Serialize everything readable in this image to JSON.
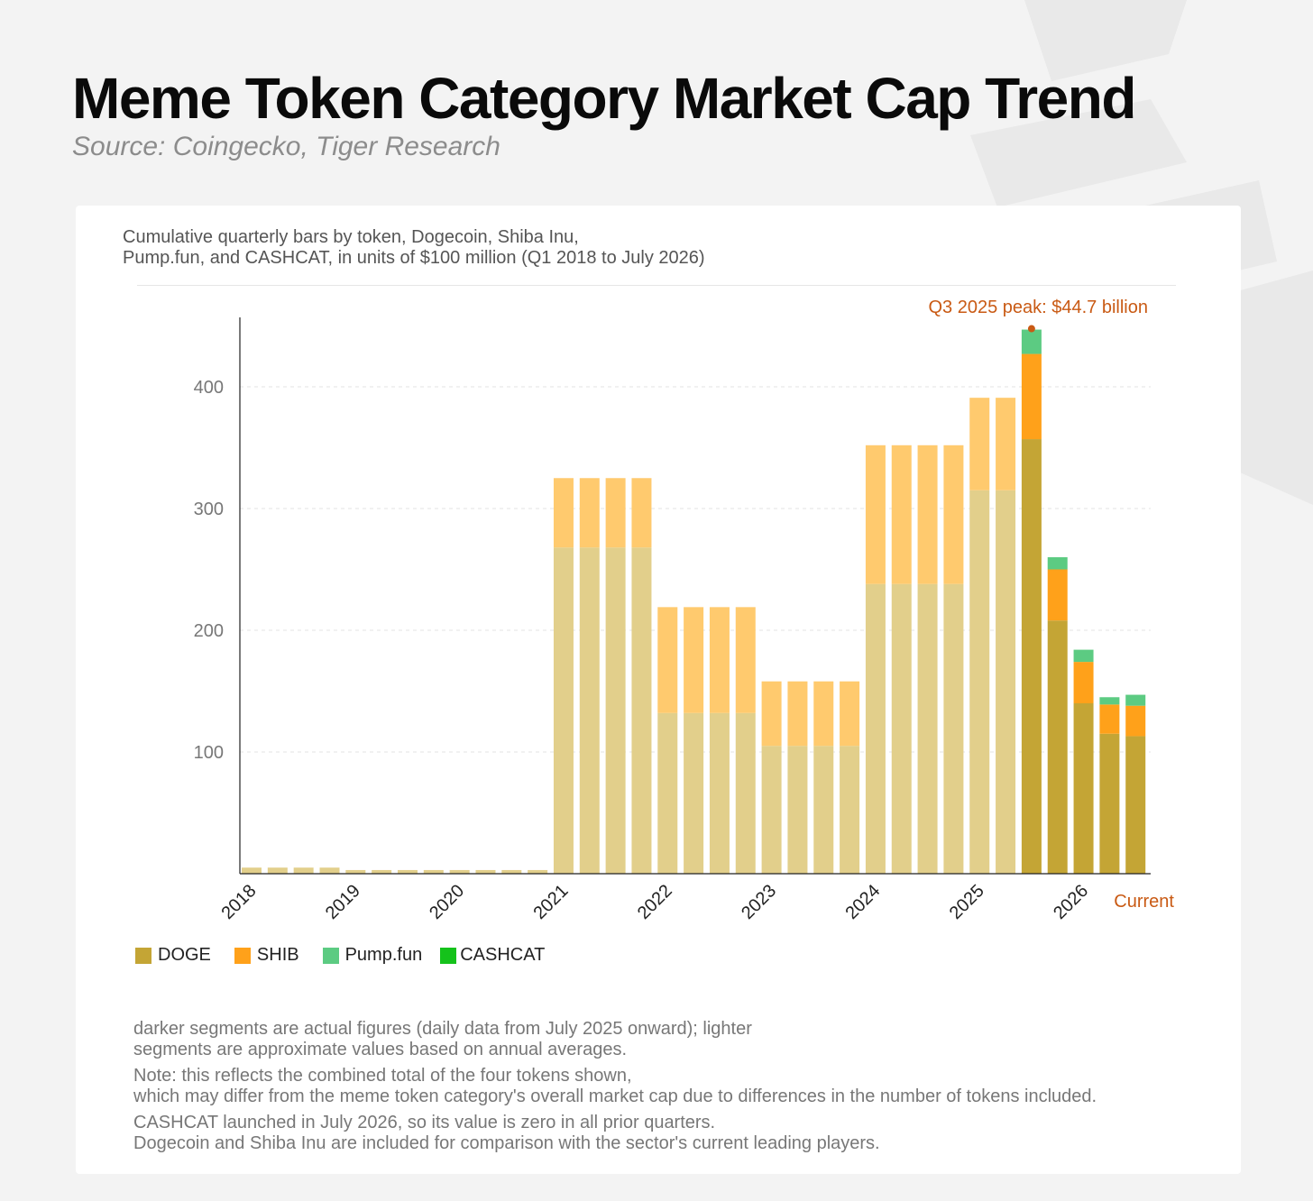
{
  "header": {
    "title": "Meme Token Category Market Cap Trend",
    "source": "Source: Coingecko, Tiger Research"
  },
  "card": {
    "subtitle": "Cumulative quarterly bars by token, Dogecoin, Shiba Inu,\nPump.fun, and CASHCAT, in units of $100 million (Q1 2018 to July 2026)",
    "peak_annotation": "Q3 2025 peak: $44.7 billion",
    "notes": [
      "darker segments are actual figures (daily data from July 2025 onward); lighter\nsegments are approximate values based on annual averages.",
      "Note: this reflects the combined total of the four tokens shown,\nwhich may differ from the meme token category's overall market cap due to differences in the number of tokens included.",
      "CASHCAT launched in July 2026, so its value is zero in all prior quarters.\n Dogecoin and Shiba Inu are included for comparison with the sector's current leading players."
    ]
  },
  "colors": {
    "DOGE": "#c4a535",
    "SHIB": "#ffa11a",
    "Pump.fun": "#5ccb82",
    "CASHCAT": "#15c21b",
    "DOGE_light": "#e2cf8b",
    "SHIB_light": "#ffca6e",
    "accent": "#c95a14"
  },
  "chart_data": {
    "type": "bar",
    "stacked": true,
    "y_ticks": [
      100,
      200,
      300,
      400
    ],
    "ylim": [
      0,
      460
    ],
    "grid": "horizontal dashed",
    "x_tick_labels": [
      "2018",
      "2019",
      "2020",
      "2021",
      "2022",
      "2023",
      "2024",
      "2025",
      "2026",
      "Current"
    ],
    "bar_count": 35,
    "series": [
      {
        "name": "DOGE",
        "values": [
          5,
          5,
          5,
          5,
          3,
          3,
          3,
          3,
          3,
          3,
          3,
          3,
          268,
          268,
          268,
          268,
          132,
          132,
          132,
          132,
          105,
          105,
          105,
          105,
          238,
          238,
          238,
          238,
          315,
          315,
          357,
          208,
          140,
          115,
          113
        ]
      },
      {
        "name": "SHIB",
        "values": [
          0,
          0,
          0,
          0,
          0,
          0,
          0,
          0,
          0,
          0,
          0,
          0,
          57,
          57,
          57,
          57,
          87,
          87,
          87,
          87,
          53,
          53,
          53,
          53,
          114,
          114,
          114,
          114,
          76,
          76,
          70,
          42,
          34,
          24,
          25
        ]
      },
      {
        "name": "Pump.fun",
        "values": [
          0,
          0,
          0,
          0,
          0,
          0,
          0,
          0,
          0,
          0,
          0,
          0,
          0,
          0,
          0,
          0,
          0,
          0,
          0,
          0,
          0,
          0,
          0,
          0,
          0,
          0,
          0,
          0,
          0,
          0,
          20,
          10,
          10,
          6,
          9
        ]
      },
      {
        "name": "CASHCAT",
        "values": [
          0,
          0,
          0,
          0,
          0,
          0,
          0,
          0,
          0,
          0,
          0,
          0,
          0,
          0,
          0,
          0,
          0,
          0,
          0,
          0,
          0,
          0,
          0,
          0,
          0,
          0,
          0,
          0,
          0,
          0,
          0,
          0,
          0,
          0,
          0
        ]
      }
    ],
    "actual_from_index": 30,
    "peak_index": 30,
    "peak_value": 447
  }
}
